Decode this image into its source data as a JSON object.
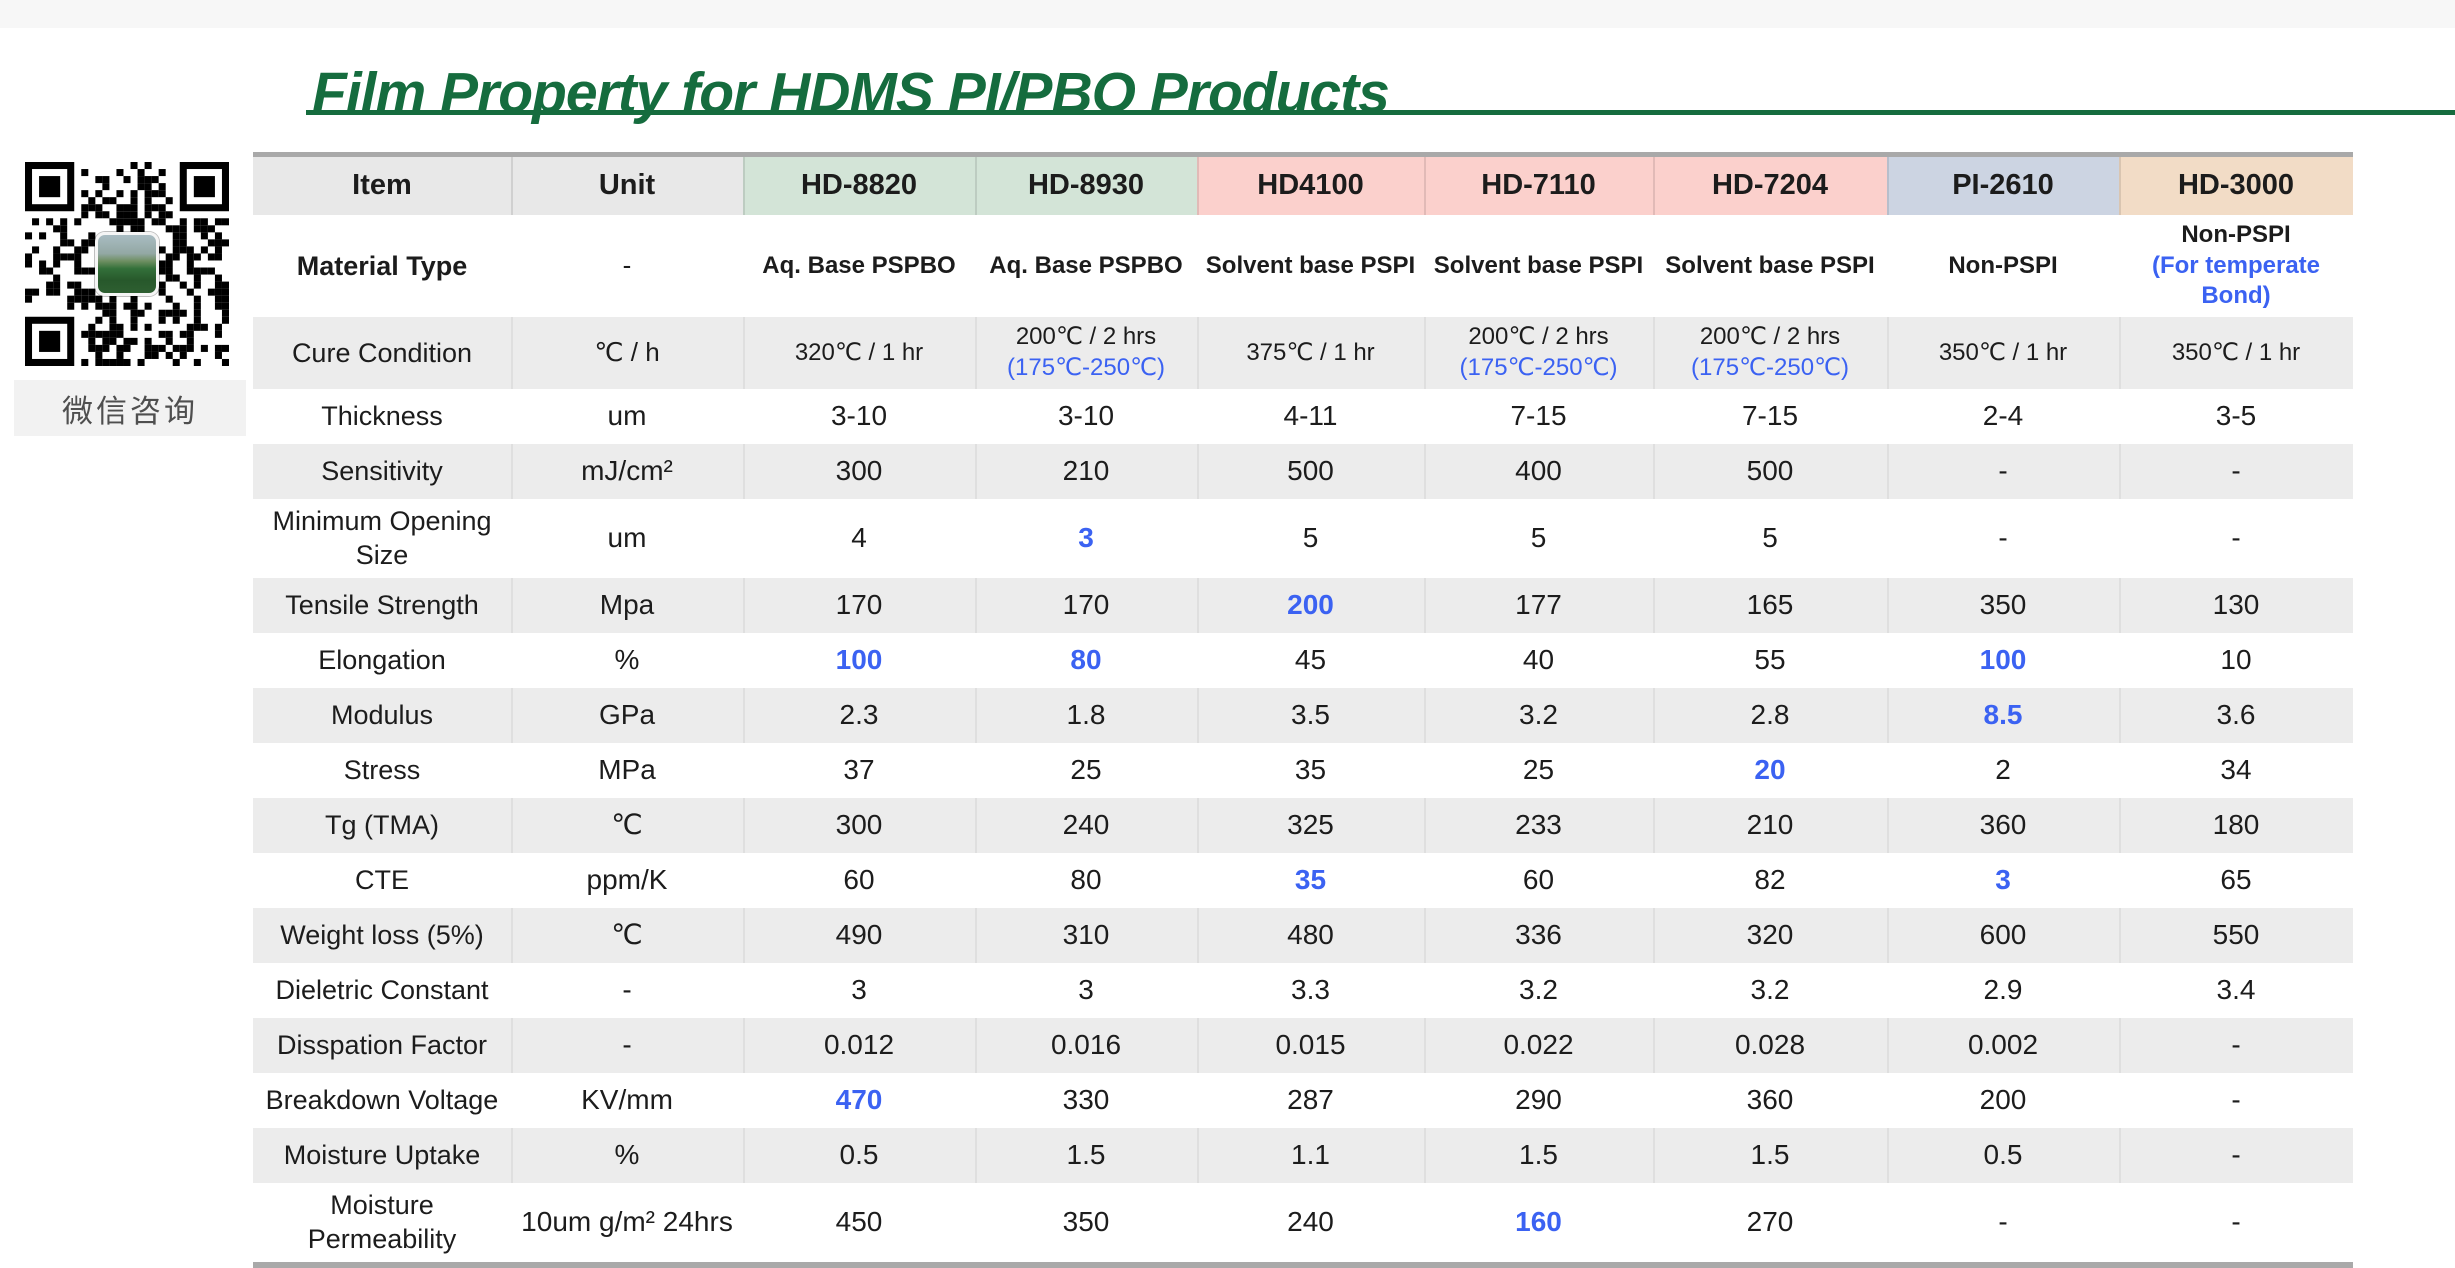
{
  "title": "Film Property for HDMS PI/PBO Products",
  "title_color": "#156c3e",
  "qr": {
    "name": "wechat-qr-code",
    "label": "微信咨询"
  },
  "highlight_color": "#3b62f2",
  "table": {
    "columns": [
      {
        "key": "item",
        "label": "Item",
        "bg": "#e8e8e8"
      },
      {
        "key": "unit",
        "label": "Unit",
        "bg": "#e8e8e8"
      },
      {
        "key": "hd8820",
        "label": "HD-8820",
        "bg": "#d3e4d7"
      },
      {
        "key": "hd8930",
        "label": "HD-8930",
        "bg": "#d3e4d7"
      },
      {
        "key": "hd4100",
        "label": "HD4100",
        "bg": "#fbd0cc"
      },
      {
        "key": "hd7110",
        "label": "HD-7110",
        "bg": "#fbd0cc"
      },
      {
        "key": "hd7204",
        "label": "HD-7204",
        "bg": "#fbd0cc"
      },
      {
        "key": "pi2610",
        "label": "PI-2610",
        "bg": "#ccd4e2"
      },
      {
        "key": "hd3000",
        "label": "HD-3000",
        "bg": "#f2dcc6"
      }
    ],
    "rows": [
      {
        "label": "Material Type",
        "label_bold": true,
        "unit": "-",
        "shade": false,
        "small": true,
        "strongvals": true,
        "cells": [
          "Aq. Base PSPBO",
          "Aq. Base PSPBO",
          "Solvent base PSPI",
          "Solvent base PSPI",
          "Solvent base PSPI",
          "Non-PSPI",
          {
            "lines": [
              {
                "t": "Non-PSPI"
              },
              {
                "t": "(For temperate Bond)",
                "blue": true
              }
            ]
          }
        ]
      },
      {
        "label": "Cure Condition",
        "unit": "℃ / h",
        "shade": true,
        "small": true,
        "tall": 1,
        "cells": [
          "320℃ / 1 hr",
          {
            "lines": [
              {
                "t": "200℃ / 2 hrs"
              },
              {
                "t": "(175℃-250℃)",
                "blue": true
              }
            ]
          },
          "375℃ / 1 hr",
          {
            "lines": [
              {
                "t": "200℃ / 2 hrs"
              },
              {
                "t": "(175℃-250℃)",
                "blue": true
              }
            ]
          },
          {
            "lines": [
              {
                "t": "200℃ / 2 hrs"
              },
              {
                "t": "(175℃-250℃)",
                "blue": true
              }
            ]
          },
          "350℃ / 1 hr",
          "350℃ / 1 hr"
        ]
      },
      {
        "label": "Thickness",
        "unit": "um",
        "shade": false,
        "cells": [
          "3-10",
          "3-10",
          "4-11",
          "7-15",
          "7-15",
          "2-4",
          "3-5"
        ]
      },
      {
        "label": "Sensitivity",
        "unit": "mJ/cm²",
        "shade": true,
        "cells": [
          "300",
          "210",
          "500",
          "400",
          "500",
          "-",
          "-"
        ]
      },
      {
        "label": "Minimum Opening Size",
        "unit": "um",
        "shade": false,
        "tall": 2,
        "cells": [
          "4",
          {
            "t": "3",
            "blue": true
          },
          "5",
          "5",
          "5",
          "-",
          "-"
        ]
      },
      {
        "label": "Tensile Strength",
        "unit": "Mpa",
        "shade": true,
        "cells": [
          "170",
          "170",
          {
            "t": "200",
            "blue": true
          },
          "177",
          "165",
          "350",
          "130"
        ]
      },
      {
        "label": "Elongation",
        "unit": "%",
        "shade": false,
        "cells": [
          {
            "t": "100",
            "blue": true
          },
          {
            "t": "80",
            "blue": true
          },
          "45",
          "40",
          "55",
          {
            "t": "100",
            "blue": true
          },
          "10"
        ]
      },
      {
        "label": "Modulus",
        "unit": "GPa",
        "shade": true,
        "cells": [
          "2.3",
          "1.8",
          "3.5",
          "3.2",
          "2.8",
          {
            "t": "8.5",
            "blue": true
          },
          "3.6"
        ]
      },
      {
        "label": "Stress",
        "unit": "MPa",
        "shade": false,
        "cells": [
          "37",
          "25",
          "35",
          "25",
          {
            "t": "20",
            "blue": true
          },
          "2",
          "34"
        ]
      },
      {
        "label": "Tg (TMA)",
        "unit": "℃",
        "shade": true,
        "cells": [
          "300",
          "240",
          "325",
          "233",
          "210",
          "360",
          "180"
        ]
      },
      {
        "label": "CTE",
        "unit": "ppm/K",
        "shade": false,
        "cells": [
          "60",
          "80",
          {
            "t": "35",
            "blue": true
          },
          "60",
          "82",
          {
            "t": "3",
            "blue": true
          },
          "65"
        ]
      },
      {
        "label": "Weight loss (5%)",
        "unit": "℃",
        "shade": true,
        "cells": [
          "490",
          "310",
          "480",
          "336",
          "320",
          "600",
          "550"
        ]
      },
      {
        "label": "Dieletric Constant",
        "unit": "-",
        "shade": false,
        "cells": [
          "3",
          "3",
          "3.3",
          "3.2",
          "3.2",
          "2.9",
          "3.4"
        ]
      },
      {
        "label": "Disspation Factor",
        "unit": "-",
        "shade": true,
        "cells": [
          "0.012",
          "0.016",
          "0.015",
          "0.022",
          "0.028",
          "0.002",
          "-"
        ]
      },
      {
        "label": "Breakdown Voltage",
        "unit": "KV/mm",
        "shade": false,
        "cells": [
          {
            "t": "470",
            "blue": true
          },
          "330",
          "287",
          "290",
          "360",
          "200",
          "-"
        ]
      },
      {
        "label": "Moisture Uptake",
        "unit": "%",
        "shade": true,
        "cells": [
          "0.5",
          "1.5",
          "1.1",
          "1.5",
          "1.5",
          "0.5",
          "-"
        ]
      },
      {
        "label": "Moisture Permeability",
        "unit": "10um g/m² 24hrs",
        "shade": false,
        "tall": 2,
        "cells": [
          "450",
          "350",
          "240",
          {
            "t": "160",
            "blue": true
          },
          "270",
          "-",
          "-"
        ]
      }
    ]
  }
}
